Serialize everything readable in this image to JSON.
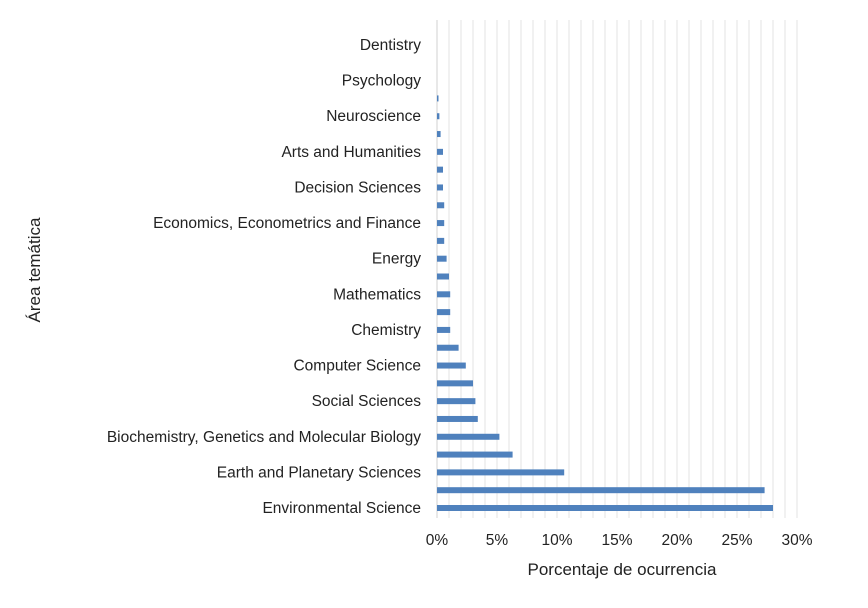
{
  "chart_data": {
    "type": "bar",
    "orientation": "horizontal",
    "xlabel": "Porcentaje de ocurrencia",
    "ylabel": "Área temática",
    "xlim": [
      0,
      0.3
    ],
    "xticks": [
      "0%",
      "5%",
      "10%",
      "15%",
      "20%",
      "25%",
      "30%"
    ],
    "grid": "vertical",
    "legend": "none",
    "bar_color": "#4f81bd",
    "categories": [
      "Environmental Science",
      "",
      "Earth and Planetary Sciences",
      "",
      "Biochemistry, Genetics and Molecular Biology",
      "",
      "Social Sciences",
      "",
      "Computer Science",
      "",
      "Chemistry",
      "",
      "Mathematics",
      "",
      "Energy",
      "",
      "Economics, Econometrics and Finance",
      "",
      "Decision Sciences",
      "",
      "Arts and Humanities",
      "",
      "Neuroscience",
      "",
      "Psychology",
      "",
      "Dentistry"
    ],
    "values": [
      0.28,
      0.273,
      0.106,
      0.063,
      0.052,
      0.034,
      0.032,
      0.03,
      0.024,
      0.018,
      0.011,
      0.011,
      0.011,
      0.01,
      0.008,
      0.006,
      0.006,
      0.006,
      0.005,
      0.005,
      0.005,
      0.003,
      0.002,
      0.001,
      0.0,
      0.0,
      0.0
    ]
  }
}
